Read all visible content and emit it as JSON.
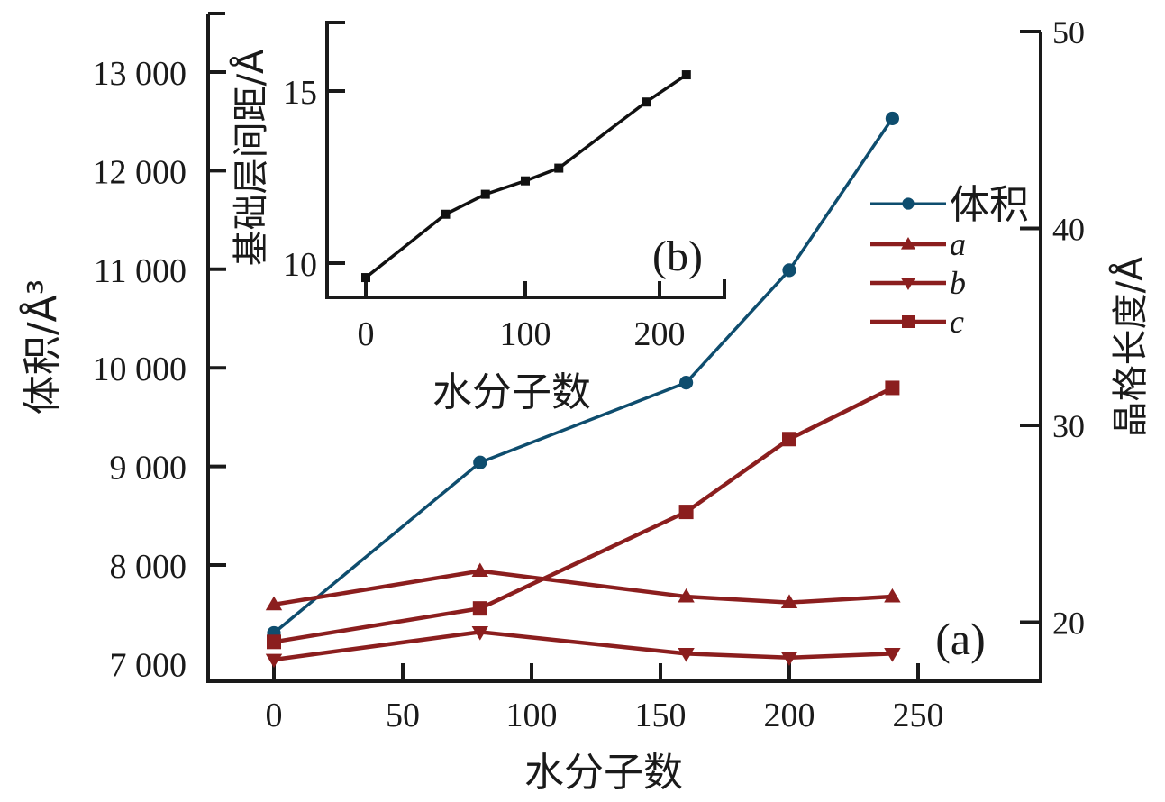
{
  "chart_data": [
    {
      "id": "main",
      "type": "line",
      "panel_label": "(a)",
      "xlabel": "水分子数",
      "ylabel_left": "体积/Å³",
      "ylabel_right": "晶格长度/Å",
      "x_ticks": [
        0,
        50,
        100,
        150,
        200,
        250
      ],
      "x_tick_labels": [
        "0",
        "50",
        "100",
        "150",
        "200",
        "250"
      ],
      "y_left_ticks": [
        7000,
        8000,
        9000,
        10000,
        11000,
        12000,
        13000
      ],
      "y_left_tick_labels": [
        "7 000",
        "8 000",
        "9 000",
        "10 000",
        "11 000",
        "12 000",
        "13 000"
      ],
      "y_right_ticks": [
        20,
        30,
        40,
        50
      ],
      "y_right_tick_labels": [
        "20",
        "30",
        "40",
        "50"
      ],
      "xlim": [
        -45,
        290
      ],
      "ylim_left": [
        6820,
        13500
      ],
      "ylim_right": [
        17,
        50
      ],
      "grid": false,
      "legend_position": "right",
      "x": [
        0,
        80,
        160,
        200,
        240
      ],
      "series": [
        {
          "name": "体积",
          "axis": "left",
          "marker": "circle",
          "color": "#0e4d6e",
          "values": [
            7310,
            9040,
            9850,
            10990,
            12530
          ]
        },
        {
          "name": "a",
          "axis": "right",
          "marker": "triangle-up",
          "color": "#8b1e1e",
          "values": [
            20.9,
            22.6,
            21.3,
            21.0,
            21.3
          ]
        },
        {
          "name": "b",
          "axis": "right",
          "marker": "triangle-down",
          "color": "#8b1e1e",
          "values": [
            18.1,
            19.5,
            18.4,
            18.2,
            18.4
          ]
        },
        {
          "name": "c",
          "axis": "right",
          "marker": "square",
          "color": "#8b1e1e",
          "values": [
            19.0,
            20.7,
            25.6,
            29.3,
            31.9
          ]
        }
      ]
    },
    {
      "id": "inset",
      "type": "line",
      "panel_label": "(b)",
      "xlabel": "水分子数",
      "ylabel": "基础层间距/Å",
      "x_ticks": [
        0,
        100,
        200
      ],
      "x_tick_labels": [
        "0",
        "100",
        "200"
      ],
      "y_ticks": [
        10,
        15
      ],
      "y_tick_labels": [
        "10",
        "15"
      ],
      "xlim": [
        -22,
        240
      ],
      "ylim": [
        9.0,
        17.0
      ],
      "grid": false,
      "series": [
        {
          "name": "基础层间距",
          "marker": "square",
          "color": "#111111",
          "x": [
            0,
            50,
            75,
            100,
            125,
            190,
            220
          ],
          "values": [
            9.58,
            11.42,
            12.0,
            12.39,
            12.76,
            14.68,
            15.47
          ]
        }
      ]
    }
  ]
}
